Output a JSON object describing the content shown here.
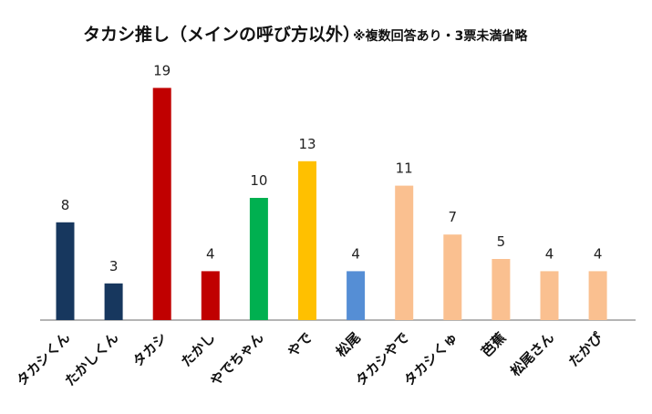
{
  "chart_data": {
    "type": "bar",
    "title": "タカシ推し（メインの呼び方以外）",
    "subtitle": "※複数回答あり・3票未満省略",
    "xlabel": "",
    "ylabel": "",
    "ylim": [
      0,
      20
    ],
    "grid": false,
    "legend": "none",
    "categories": [
      "タカシくん",
      "たかしくん",
      "タカシ",
      "たかし",
      "やでちゃん",
      "やで",
      "松尾",
      "タカシやで",
      "タカシくゅ",
      "芭蕉",
      "松尾さん",
      "たかぴ"
    ],
    "values": [
      8,
      3,
      19,
      4,
      10,
      13,
      4,
      11,
      7,
      5,
      4,
      4
    ],
    "colors": [
      "#17375E",
      "#17375E",
      "#C00000",
      "#C00000",
      "#00B050",
      "#FFC000",
      "#558ED5",
      "#FAC090",
      "#FAC090",
      "#FAC090",
      "#FAC090",
      "#FAC090"
    ]
  }
}
